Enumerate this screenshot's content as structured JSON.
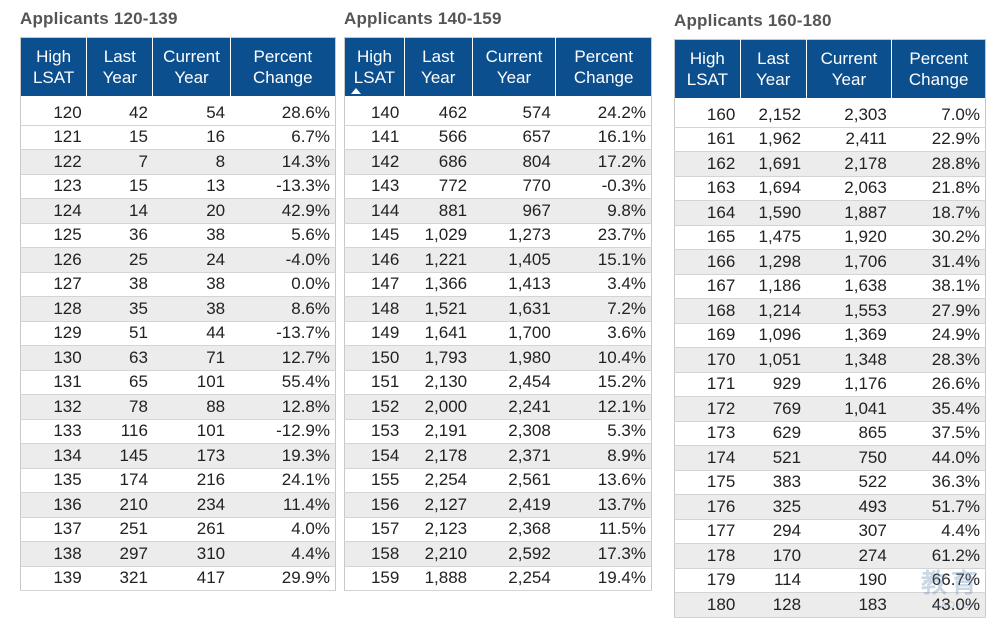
{
  "tables": [
    {
      "title": "Applicants 120-139",
      "headers": [
        [
          "High",
          "LSAT"
        ],
        [
          "Last",
          "Year"
        ],
        [
          "Current",
          "Year"
        ],
        [
          "Percent",
          "Change"
        ]
      ],
      "rows": [
        [
          "120",
          "42",
          "54",
          "28.6%"
        ],
        [
          "121",
          "15",
          "16",
          "6.7%"
        ],
        [
          "122",
          "7",
          "8",
          "14.3%"
        ],
        [
          "123",
          "15",
          "13",
          "-13.3%"
        ],
        [
          "124",
          "14",
          "20",
          "42.9%"
        ],
        [
          "125",
          "36",
          "38",
          "5.6%"
        ],
        [
          "126",
          "25",
          "24",
          "-4.0%"
        ],
        [
          "127",
          "38",
          "38",
          "0.0%"
        ],
        [
          "128",
          "35",
          "38",
          "8.6%"
        ],
        [
          "129",
          "51",
          "44",
          "-13.7%"
        ],
        [
          "130",
          "63",
          "71",
          "12.7%"
        ],
        [
          "131",
          "65",
          "101",
          "55.4%"
        ],
        [
          "132",
          "78",
          "88",
          "12.8%"
        ],
        [
          "133",
          "116",
          "101",
          "-12.9%"
        ],
        [
          "134",
          "145",
          "173",
          "19.3%"
        ],
        [
          "135",
          "174",
          "216",
          "24.1%"
        ],
        [
          "136",
          "210",
          "234",
          "11.4%"
        ],
        [
          "137",
          "251",
          "261",
          "4.0%"
        ],
        [
          "138",
          "297",
          "310",
          "4.4%"
        ],
        [
          "139",
          "321",
          "417",
          "29.9%"
        ]
      ]
    },
    {
      "title": "Applicants 140-159",
      "sort_icon": "sort-ascending-icon",
      "headers": [
        [
          "High",
          "LSAT"
        ],
        [
          "Last",
          "Year"
        ],
        [
          "Current",
          "Year"
        ],
        [
          "Percent",
          "Change"
        ]
      ],
      "rows": [
        [
          "140",
          "462",
          "574",
          "24.2%"
        ],
        [
          "141",
          "566",
          "657",
          "16.1%"
        ],
        [
          "142",
          "686",
          "804",
          "17.2%"
        ],
        [
          "143",
          "772",
          "770",
          "-0.3%"
        ],
        [
          "144",
          "881",
          "967",
          "9.8%"
        ],
        [
          "145",
          "1,029",
          "1,273",
          "23.7%"
        ],
        [
          "146",
          "1,221",
          "1,405",
          "15.1%"
        ],
        [
          "147",
          "1,366",
          "1,413",
          "3.4%"
        ],
        [
          "148",
          "1,521",
          "1,631",
          "7.2%"
        ],
        [
          "149",
          "1,641",
          "1,700",
          "3.6%"
        ],
        [
          "150",
          "1,793",
          "1,980",
          "10.4%"
        ],
        [
          "151",
          "2,130",
          "2,454",
          "15.2%"
        ],
        [
          "152",
          "2,000",
          "2,241",
          "12.1%"
        ],
        [
          "153",
          "2,191",
          "2,308",
          "5.3%"
        ],
        [
          "154",
          "2,178",
          "2,371",
          "8.9%"
        ],
        [
          "155",
          "2,254",
          "2,561",
          "13.6%"
        ],
        [
          "156",
          "2,127",
          "2,419",
          "13.7%"
        ],
        [
          "157",
          "2,123",
          "2,368",
          "11.5%"
        ],
        [
          "158",
          "2,210",
          "2,592",
          "17.3%"
        ],
        [
          "159",
          "1,888",
          "2,254",
          "19.4%"
        ]
      ]
    },
    {
      "title": "Applicants 160-180",
      "headers": [
        [
          "High",
          "LSAT"
        ],
        [
          "Last",
          "Year"
        ],
        [
          "Current",
          "Year"
        ],
        [
          "Percent",
          "Change"
        ]
      ],
      "rows": [
        [
          "160",
          "2,152",
          "2,303",
          "7.0%"
        ],
        [
          "161",
          "1,962",
          "2,411",
          "22.9%"
        ],
        [
          "162",
          "1,691",
          "2,178",
          "28.8%"
        ],
        [
          "163",
          "1,694",
          "2,063",
          "21.8%"
        ],
        [
          "164",
          "1,590",
          "1,887",
          "18.7%"
        ],
        [
          "165",
          "1,475",
          "1,920",
          "30.2%"
        ],
        [
          "166",
          "1,298",
          "1,706",
          "31.4%"
        ],
        [
          "167",
          "1,186",
          "1,638",
          "38.1%"
        ],
        [
          "168",
          "1,214",
          "1,553",
          "27.9%"
        ],
        [
          "169",
          "1,096",
          "1,369",
          "24.9%"
        ],
        [
          "170",
          "1,051",
          "1,348",
          "28.3%"
        ],
        [
          "171",
          "929",
          "1,176",
          "26.6%"
        ],
        [
          "172",
          "769",
          "1,041",
          "35.4%"
        ],
        [
          "173",
          "629",
          "865",
          "37.5%"
        ],
        [
          "174",
          "521",
          "750",
          "44.0%"
        ],
        [
          "175",
          "383",
          "522",
          "36.3%"
        ],
        [
          "176",
          "325",
          "493",
          "51.7%"
        ],
        [
          "177",
          "294",
          "307",
          "4.4%"
        ],
        [
          "178",
          "170",
          "274",
          "61.2%"
        ],
        [
          "179",
          "114",
          "190",
          "66.7%"
        ],
        [
          "180",
          "128",
          "183",
          "43.0%"
        ]
      ]
    }
  ],
  "watermark": {
    "main": "教育",
    "sub": "JIAOYU"
  },
  "colors": {
    "header_bg": "#0b4f8f",
    "header_text": "#ffffff",
    "row_alt": "#ececec",
    "title": "#555555"
  }
}
